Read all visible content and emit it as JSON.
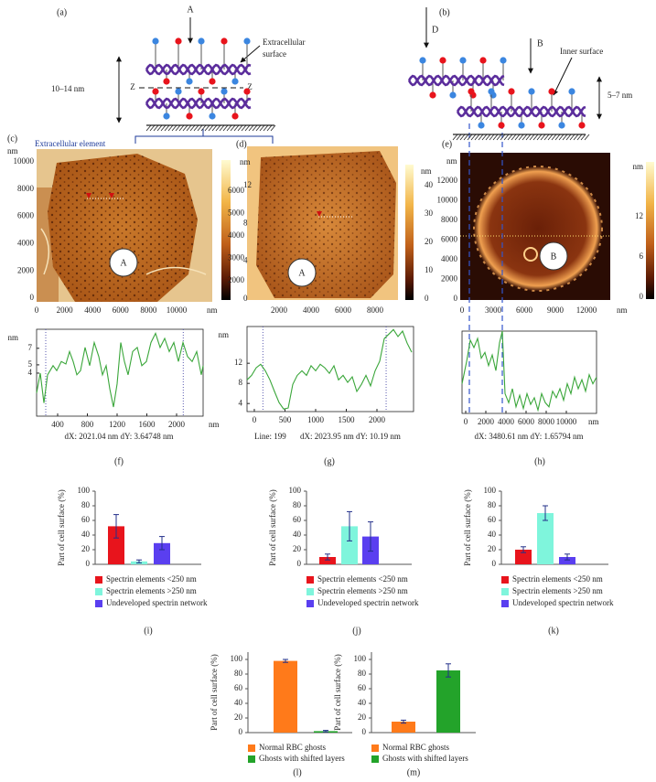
{
  "diagram_a": {
    "panel": "(a)",
    "probe": "A",
    "surface_label": [
      "Extracellular",
      "surface"
    ],
    "thickness": "10–14 nm",
    "plane": [
      "Z",
      "Z"
    ]
  },
  "diagram_b": {
    "panel": "(b)",
    "probes": [
      "D",
      "B"
    ],
    "surface_label": "Inner surface",
    "thickness": "5–7 nm"
  },
  "images": [
    {
      "panel": "(c)",
      "annotation": "Extracellular element",
      "y_unit": "nm",
      "yticks": [
        10000,
        8000,
        6000,
        4000,
        2000,
        0
      ],
      "xticks": [
        0,
        2000,
        4000,
        6000,
        8000,
        10000
      ],
      "x_unit": "nm",
      "colorbar_unit": "nm",
      "colorbar_ticks": [
        12,
        8,
        4,
        0
      ],
      "marker": "A"
    },
    {
      "panel": "(d)",
      "yticks": [
        6000,
        5000,
        4000,
        3000,
        2000
      ],
      "xticks": [
        2000,
        4000,
        6000,
        8000
      ],
      "colorbar_unit": "nm",
      "colorbar_ticks": [
        40,
        30,
        20,
        10,
        0
      ],
      "marker": "A"
    },
    {
      "panel": "(e)",
      "y_unit": "nm",
      "yticks": [
        12000,
        10000,
        8000,
        6000,
        4000,
        2000,
        0
      ],
      "xticks": [
        0,
        3000,
        6000,
        9000,
        12000
      ],
      "x_unit": "nm",
      "colorbar_unit": "nm",
      "colorbar_ticks": [
        12,
        6,
        0
      ],
      "marker": "B"
    }
  ],
  "chart_data": [
    {
      "type": "line",
      "panel": "(f)",
      "caption": "dX: 2021.04 nm dY: 3.64748 nm",
      "y_label": "nm",
      "x_label": "nm",
      "color": "#3aa63a",
      "x": [
        117,
        166,
        215,
        265,
        339,
        388,
        449,
        511,
        560,
        609,
        659,
        708,
        769,
        831,
        892,
        954,
        1003,
        1052,
        1102,
        1151,
        1200,
        1249,
        1299,
        1348,
        1409,
        1471,
        1532,
        1594,
        1655,
        1717,
        1779,
        1840,
        1902,
        1963,
        2025,
        2086,
        2148,
        2209,
        2271,
        2332,
        2357
      ],
      "values": [
        1.6,
        4.0,
        0.4,
        3.8,
        4.9,
        4.3,
        5.4,
        5.1,
        6.6,
        5.4,
        3.8,
        4.3,
        7.1,
        4.9,
        7.7,
        6.0,
        3.8,
        4.9,
        2.1,
        -0.1,
        2.7,
        7.7,
        5.4,
        3.8,
        6.6,
        7.1,
        4.9,
        5.4,
        7.7,
        8.8,
        7.1,
        8.2,
        6.6,
        7.7,
        5.4,
        7.7,
        6.0,
        5.4,
        6.6,
        3.8,
        4.9
      ],
      "xlim": [
        117,
        2357
      ],
      "ylim": [
        -1.2,
        9.3
      ],
      "xticks": [
        400,
        800,
        1200,
        1600,
        2000
      ],
      "yticks": [
        4,
        5,
        7
      ],
      "markers_x": [
        240,
        2090
      ]
    },
    {
      "type": "line",
      "panel": "(g)",
      "note": "Line: 199",
      "caption": "dX: 2023.95 nm dY: 10.19 nm",
      "y_label": "nm",
      "color": "#3aa63a",
      "x": [
        -119,
        -45,
        30,
        104,
        179,
        254,
        328,
        403,
        478,
        552,
        627,
        701,
        776,
        851,
        925,
        1000,
        1075,
        1149,
        1224,
        1298,
        1373,
        1448,
        1522,
        1597,
        1672,
        1746,
        1821,
        1895,
        1970,
        2045,
        2119,
        2194,
        2269,
        2343,
        2418,
        2492,
        2567
      ],
      "values": [
        8.7,
        9.6,
        11.1,
        11.8,
        10.5,
        8.7,
        6.4,
        4.2,
        2.9,
        3.1,
        7.8,
        9.6,
        10.5,
        9.6,
        11.5,
        10.5,
        11.8,
        11.1,
        10.0,
        11.5,
        8.7,
        9.6,
        8.2,
        9.3,
        6.4,
        7.8,
        9.6,
        7.5,
        10.5,
        12.4,
        16.9,
        17.8,
        18.7,
        17.3,
        18.4,
        16.0,
        14.2
      ],
      "xlim": [
        -119,
        2597
      ],
      "ylim": [
        2.4,
        19.3
      ],
      "xticks": [
        0,
        500,
        1000,
        1500,
        2000
      ],
      "yticks": [
        4,
        8,
        12
      ],
      "markers_x": [
        140,
        2150
      ]
    },
    {
      "type": "line",
      "panel": "(h)",
      "caption": "dX: 3480.61 nm dY: 1.65794 nm",
      "x_label": "nm",
      "color": "#3aa63a",
      "x": [
        -364,
        91,
        455,
        818,
        1182,
        1545,
        1909,
        2273,
        2636,
        3000,
        3364,
        3636,
        3909,
        4273,
        4636,
        5000,
        5364,
        5727,
        6091,
        6455,
        6818,
        7182,
        7545,
        7909,
        8273,
        8636,
        9000,
        9364,
        9727,
        10091,
        10455,
        10818,
        11182,
        11545,
        11909,
        12273,
        12636,
        13000
      ],
      "values": [
        3.6,
        6.3,
        8.9,
        8.0,
        9.1,
        6.7,
        7.4,
        5.8,
        7.1,
        5.2,
        8.6,
        10.0,
        2.4,
        1.3,
        3.0,
        0.8,
        2.2,
        0.6,
        2.4,
        1.1,
        1.9,
        0.4,
        2.4,
        1.3,
        0.8,
        2.7,
        1.9,
        3.0,
        1.6,
        3.6,
        2.4,
        4.4,
        3.0,
        4.1,
        2.7,
        4.7,
        3.6,
        4.4
      ],
      "xlim": [
        -364,
        13000
      ],
      "ylim": [
        0,
        10
      ],
      "xticks": [
        0,
        2000,
        4000,
        6000,
        8000,
        10000
      ]
    },
    {
      "type": "bar",
      "panel": "(i)",
      "y_label": "Part of cell surface (%)",
      "ylim": [
        0,
        100
      ],
      "yticks": [
        0,
        20,
        40,
        60,
        80,
        100
      ],
      "series": [
        {
          "name": "Spectrin elements <250 nm",
          "color": "#e8141c",
          "values": [
            52
          ],
          "errors": [
            16
          ]
        },
        {
          "name": "Spectrin elements >250 nm",
          "color": "#7ff5dc",
          "values": [
            4
          ],
          "errors": [
            2
          ]
        },
        {
          "name": "Undeveloped spectrin network",
          "color": "#5a3ff0",
          "values": [
            29
          ],
          "errors": [
            9
          ]
        }
      ]
    },
    {
      "type": "bar",
      "panel": "(j)",
      "y_label": "Part of cell surface (%)",
      "ylim": [
        0,
        100
      ],
      "yticks": [
        0,
        20,
        40,
        60,
        80,
        100
      ],
      "series": [
        {
          "name": "Spectrin elements <250 nm",
          "color": "#e8141c",
          "values": [
            10
          ],
          "errors": [
            4
          ]
        },
        {
          "name": "Spectrin elements >250 nm",
          "color": "#7ff5dc",
          "values": [
            52
          ],
          "errors": [
            20
          ]
        },
        {
          "name": "Undeveloped spectrin network",
          "color": "#5a3ff0",
          "values": [
            38
          ],
          "errors": [
            20
          ]
        }
      ]
    },
    {
      "type": "bar",
      "panel": "(k)",
      "y_label": "Part of cell surface (%)",
      "ylim": [
        0,
        100
      ],
      "yticks": [
        0,
        20,
        40,
        60,
        80,
        100
      ],
      "series": [
        {
          "name": "Spectrin elements <250 nm",
          "color": "#e8141c",
          "values": [
            20
          ],
          "errors": [
            4
          ]
        },
        {
          "name": "Spectrin elements >250 nm",
          "color": "#7ff5dc",
          "values": [
            70
          ],
          "errors": [
            10
          ]
        },
        {
          "name": "Undeveloped spectrin network",
          "color": "#5a3ff0",
          "values": [
            10
          ],
          "errors": [
            4
          ]
        }
      ]
    },
    {
      "type": "bar",
      "panel": "(l)",
      "y_label": "Part of cell surface (%)",
      "ylim": [
        0,
        110
      ],
      "yticks": [
        0,
        20,
        40,
        60,
        80,
        100
      ],
      "series": [
        {
          "name": "Normal RBC ghosts",
          "color": "#ff7a1a",
          "values": [
            98
          ],
          "errors": [
            2
          ]
        },
        {
          "name": "Ghosts with shifted layers",
          "color": "#23a32a",
          "values": [
            2
          ],
          "errors": [
            1
          ]
        }
      ]
    },
    {
      "type": "bar",
      "panel": "(m)",
      "y_label": "Part of cell surface (%)",
      "ylim": [
        0,
        110
      ],
      "yticks": [
        0,
        20,
        40,
        60,
        80,
        100
      ],
      "series": [
        {
          "name": "Normal RBC ghosts",
          "color": "#ff7a1a",
          "values": [
            15
          ],
          "errors": [
            2
          ]
        },
        {
          "name": "Ghosts with shifted layers",
          "color": "#23a32a",
          "values": [
            85
          ],
          "errors": [
            9
          ]
        }
      ]
    }
  ]
}
